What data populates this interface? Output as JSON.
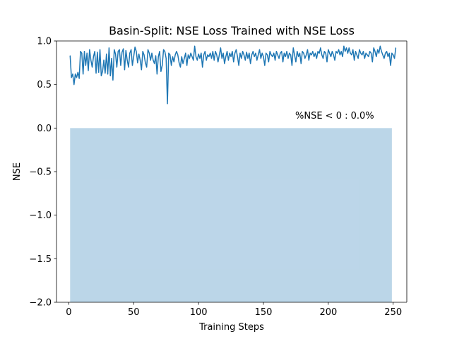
{
  "chart_data": {
    "type": "line",
    "title": "Basin-Split: NSE Loss Trained with NSE Loss",
    "xlabel": "Training Steps",
    "ylabel": "NSE",
    "xlim": [
      -9.5,
      260.5
    ],
    "ylim": [
      -2.0,
      1.0
    ],
    "xticks": [
      0,
      50,
      100,
      150,
      200,
      250
    ],
    "yticks": [
      1.0,
      0.5,
      0.0,
      -0.5,
      -1.0,
      -1.5,
      -2.0
    ],
    "xtick_labels": [
      "0",
      "50",
      "100",
      "150",
      "200",
      "250"
    ],
    "ytick_labels": [
      "1.0",
      "0.5",
      "0.0",
      "−0.5",
      "−1.0",
      "−1.5",
      "−2.0"
    ],
    "annotation": "%NSE < 0 : 0.0%",
    "grid": false,
    "shaded_region": {
      "x": [
        1,
        249
      ],
      "y": [
        -2.0,
        0.0
      ],
      "color": "#1f77b4",
      "alpha": 0.3
    },
    "series": [
      {
        "color": "#1f77b4",
        "x_start": 1,
        "x_step": 1,
        "values": [
          0.83,
          0.58,
          0.62,
          0.5,
          0.62,
          0.58,
          0.64,
          0.57,
          0.88,
          0.86,
          0.62,
          0.88,
          0.72,
          0.86,
          0.66,
          0.9,
          0.78,
          0.7,
          0.82,
          0.88,
          0.63,
          0.87,
          0.64,
          0.9,
          0.6,
          0.65,
          0.78,
          0.63,
          0.85,
          0.62,
          0.92,
          0.6,
          0.8,
          0.55,
          0.9,
          0.85,
          0.7,
          0.88,
          0.9,
          0.72,
          0.87,
          0.91,
          0.67,
          0.89,
          0.78,
          0.7,
          0.86,
          0.9,
          0.72,
          0.82,
          0.93,
          0.88,
          0.75,
          0.85,
          0.78,
          0.67,
          0.88,
          0.84,
          0.75,
          0.7,
          0.9,
          0.86,
          0.78,
          0.86,
          0.78,
          0.74,
          0.83,
          0.62,
          0.82,
          0.88,
          0.65,
          0.72,
          0.9,
          0.88,
          0.8,
          0.28,
          0.86,
          0.84,
          0.72,
          0.82,
          0.76,
          0.84,
          0.88,
          0.84,
          0.75,
          0.7,
          0.82,
          0.74,
          0.8,
          0.86,
          0.72,
          0.84,
          0.8,
          0.86,
          0.82,
          0.78,
          0.94,
          0.82,
          0.78,
          0.85,
          0.8,
          0.86,
          0.7,
          0.84,
          0.88,
          0.78,
          0.84,
          0.82,
          0.86,
          0.8,
          0.88,
          0.78,
          0.88,
          0.84,
          0.76,
          0.84,
          0.92,
          0.8,
          0.86,
          0.74,
          0.82,
          0.88,
          0.78,
          0.86,
          0.82,
          0.88,
          0.76,
          0.86,
          0.9,
          0.82,
          0.72,
          0.86,
          0.8,
          0.88,
          0.84,
          0.78,
          0.87,
          0.8,
          0.86,
          0.74,
          0.84,
          0.88,
          0.82,
          0.86,
          0.78,
          0.84,
          0.9,
          0.8,
          0.86,
          0.82,
          0.72,
          0.86,
          0.84,
          0.76,
          0.88,
          0.84,
          0.82,
          0.86,
          0.78,
          0.88,
          0.84,
          0.8,
          0.86,
          0.88,
          0.76,
          0.86,
          0.82,
          0.88,
          0.8,
          0.86,
          0.84,
          0.72,
          0.92,
          0.84,
          0.76,
          0.88,
          0.82,
          0.86,
          0.74,
          0.88,
          0.86,
          0.8,
          0.84,
          0.9,
          0.78,
          0.86,
          0.84,
          0.88,
          0.82,
          0.86,
          0.8,
          0.88,
          0.86,
          0.92,
          0.84,
          0.8,
          0.88,
          0.86,
          0.76,
          0.9,
          0.86,
          0.82,
          0.88,
          0.84,
          0.78,
          0.88,
          0.86,
          0.9,
          0.84,
          0.88,
          0.82,
          0.94,
          0.88,
          0.92,
          0.86,
          0.92,
          0.86,
          0.84,
          0.9,
          0.78,
          0.88,
          0.84,
          0.8,
          0.9,
          0.86,
          0.84,
          0.88,
          0.8,
          0.86,
          0.84,
          0.82,
          0.88,
          0.86,
          0.76,
          0.92,
          0.88,
          0.82,
          0.9,
          0.86,
          0.94,
          0.88,
          0.84,
          0.8,
          0.86,
          0.88,
          0.82,
          0.86,
          0.72,
          0.86,
          0.84,
          0.8,
          0.92
        ]
      }
    ]
  }
}
